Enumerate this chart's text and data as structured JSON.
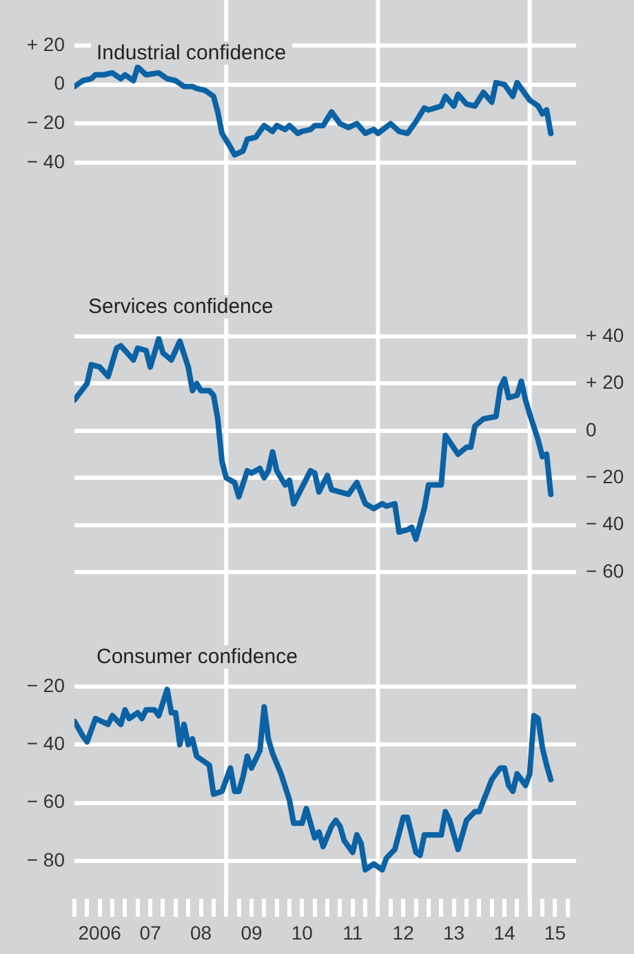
{
  "chart_data": [
    {
      "type": "line",
      "title": "Industrial confidence",
      "xlim": [
        "2006-01",
        "2015-12"
      ],
      "ylim": [
        -40,
        20
      ],
      "yticks": [
        {
          "value": 20,
          "label": "+ 20"
        },
        0,
        {
          "value": -20,
          "label": "− 20"
        },
        {
          "value": -40,
          "label": "− 40"
        }
      ],
      "grid": "y",
      "tick_labels": "y",
      "ref_lines": [
        {
          "axis": "x",
          "value": "2009-01",
          "color": "#ffffff"
        },
        {
          "axis": "x",
          "value": "2012-01",
          "color": "#ffffff"
        },
        {
          "axis": "x",
          "value": "2015-01",
          "color": "#ffffff"
        }
      ],
      "series": [
        {
          "color": "#0b62a4",
          "x": [
            "2006-01",
            "2006-03",
            "2006-05",
            "2006-06",
            "2006-08",
            "2006-10",
            "2006-12",
            "2007-01",
            "2007-03",
            "2007-04",
            "2007-06",
            "2007-09",
            "2007-11",
            "2008-01",
            "2008-03",
            "2008-05",
            "2008-06",
            "2008-08",
            "2008-10",
            "2008-11",
            "2008-12",
            "2009-02",
            "2009-03",
            "2009-05",
            "2009-06",
            "2009-08",
            "2009-10",
            "2009-12",
            "2010-01",
            "2010-03",
            "2010-04",
            "2010-06",
            "2010-07",
            "2010-09",
            "2010-10",
            "2010-12",
            "2011-02",
            "2011-04",
            "2011-06",
            "2011-08",
            "2011-10",
            "2011-12",
            "2012-01",
            "2012-04",
            "2012-06",
            "2012-08",
            "2012-10",
            "2012-12",
            "2013-01",
            "2013-04",
            "2013-05",
            "2013-07",
            "2013-08",
            "2013-10",
            "2013-12",
            "2014-02",
            "2014-04",
            "2014-05",
            "2014-07",
            "2014-09",
            "2014-10",
            "2015-01",
            "2015-03",
            "2015-04",
            "2015-05",
            "2015-06"
          ],
          "values": [
            -1,
            2,
            3,
            5,
            5,
            6,
            3,
            5,
            2,
            9,
            5,
            6,
            3,
            2,
            -1,
            -1,
            -2,
            -3,
            -6,
            -14,
            -25,
            -32,
            -36,
            -34,
            -28,
            -27,
            -21,
            -24,
            -21,
            -23,
            -21,
            -25,
            -24,
            -23,
            -21,
            -21,
            -14,
            -20,
            -22,
            -20,
            -25,
            -23,
            -25,
            -20,
            -24,
            -25,
            -19,
            -12,
            -13,
            -11,
            -6,
            -11,
            -5,
            -10,
            -11,
            -4,
            -9,
            1,
            0,
            -6,
            1,
            -8,
            -11,
            -15,
            -13,
            -25
          ]
        }
      ]
    },
    {
      "type": "line",
      "title": "Services confidence",
      "xlim": [
        "2006-01",
        "2015-12"
      ],
      "y2lim": [
        -60,
        40
      ],
      "y2ticks": [
        {
          "value": 40,
          "label": "+ 40"
        },
        {
          "value": 20,
          "label": "+ 20"
        },
        0,
        {
          "value": -20,
          "label": "− 20"
        },
        {
          "value": -40,
          "label": "− 40"
        },
        {
          "value": -60,
          "label": "− 60"
        }
      ],
      "grid": "y",
      "tick_labels": "y2",
      "ref_lines": [
        {
          "axis": "x",
          "value": "2009-01",
          "color": "#ffffff"
        },
        {
          "axis": "x",
          "value": "2012-01",
          "color": "#ffffff"
        },
        {
          "axis": "x",
          "value": "2015-01",
          "color": "#ffffff"
        }
      ],
      "series": [
        {
          "color": "#0b62a4",
          "axis": "y2",
          "x": [
            "2006-01",
            "2006-04",
            "2006-05",
            "2006-07",
            "2006-09",
            "2006-11",
            "2006-12",
            "2007-03",
            "2007-04",
            "2007-06",
            "2007-07",
            "2007-09",
            "2007-10",
            "2007-12",
            "2008-02",
            "2008-04",
            "2008-05",
            "2008-06",
            "2008-07",
            "2008-09",
            "2008-10",
            "2008-11",
            "2008-12",
            "2009-01",
            "2009-03",
            "2009-04",
            "2009-06",
            "2009-07",
            "2009-09",
            "2009-10",
            "2009-11",
            "2009-12",
            "2010-01",
            "2010-03",
            "2010-04",
            "2010-05",
            "2010-07",
            "2010-09",
            "2010-10",
            "2010-11",
            "2011-01",
            "2011-02",
            "2011-06",
            "2011-08",
            "2011-10",
            "2011-12",
            "2012-02",
            "2012-03",
            "2012-05",
            "2012-06",
            "2012-08",
            "2012-09",
            "2012-10",
            "2012-12",
            "2013-01",
            "2013-04",
            "2013-05",
            "2013-08",
            "2013-10",
            "2013-11",
            "2013-12",
            "2014-02",
            "2014-05",
            "2014-06",
            "2014-07",
            "2014-08",
            "2014-10",
            "2014-11",
            "2014-12",
            "2015-01",
            "2015-03",
            "2015-04",
            "2015-05",
            "2015-06"
          ],
          "values": [
            13,
            20,
            28,
            27,
            23,
            35,
            36,
            30,
            35,
            34,
            27,
            39,
            33,
            30,
            38,
            27,
            17,
            20,
            17,
            17,
            15,
            5,
            -13,
            -20,
            -22,
            -28,
            -17,
            -18,
            -16,
            -20,
            -17,
            -9,
            -17,
            -23,
            -21,
            -31,
            -24,
            -17,
            -18,
            -26,
            -19,
            -25,
            -27,
            -22,
            -31,
            -33,
            -31,
            -32,
            -31,
            -43,
            -42,
            -41,
            -46,
            -33,
            -23,
            -23,
            -2,
            -10,
            -7,
            -7,
            2,
            5,
            6,
            18,
            22,
            14,
            15,
            21,
            13,
            7,
            -4,
            -11,
            -10,
            -27
          ]
        }
      ]
    },
    {
      "type": "line",
      "title": "Consumer confidence",
      "xlim": [
        "2006-01",
        "2015-12"
      ],
      "ylim": [
        -93,
        -20
      ],
      "yticks": [
        {
          "value": -20,
          "label": "− 20"
        },
        {
          "value": -40,
          "label": "− 40"
        },
        {
          "value": -60,
          "label": "− 60"
        },
        {
          "value": -80,
          "label": "− 80"
        }
      ],
      "xticks": [
        {
          "value": "2006-01",
          "label": null
        },
        {
          "value": "2006-04",
          "label": null
        },
        {
          "value": "2006-07",
          "label": "2006"
        },
        {
          "value": "2006-10",
          "label": null
        },
        {
          "value": "2007-01",
          "label": null
        },
        {
          "value": "2007-04",
          "label": null
        },
        {
          "value": "2007-07",
          "label": "07"
        },
        {
          "value": "2007-10",
          "label": null
        },
        {
          "value": "2008-01",
          "label": null
        },
        {
          "value": "2008-04",
          "label": null
        },
        {
          "value": "2008-07",
          "label": "08"
        },
        {
          "value": "2008-10",
          "label": null
        },
        {
          "value": "2009-01",
          "label": null
        },
        {
          "value": "2009-04",
          "label": null
        },
        {
          "value": "2009-07",
          "label": "09"
        },
        {
          "value": "2009-10",
          "label": null
        },
        {
          "value": "2010-01",
          "label": null
        },
        {
          "value": "2010-04",
          "label": null
        },
        {
          "value": "2010-07",
          "label": "10"
        },
        {
          "value": "2010-10",
          "label": null
        },
        {
          "value": "2011-01",
          "label": null
        },
        {
          "value": "2011-04",
          "label": null
        },
        {
          "value": "2011-07",
          "label": "11"
        },
        {
          "value": "2011-10",
          "label": null
        },
        {
          "value": "2012-01",
          "label": null
        },
        {
          "value": "2012-04",
          "label": null
        },
        {
          "value": "2012-07",
          "label": "12"
        },
        {
          "value": "2012-10",
          "label": null
        },
        {
          "value": "2013-01",
          "label": null
        },
        {
          "value": "2013-04",
          "label": null
        },
        {
          "value": "2013-07",
          "label": "13"
        },
        {
          "value": "2013-10",
          "label": null
        },
        {
          "value": "2014-01",
          "label": null
        },
        {
          "value": "2014-04",
          "label": null
        },
        {
          "value": "2014-07",
          "label": "14"
        },
        {
          "value": "2014-10",
          "label": null
        },
        {
          "value": "2015-01",
          "label": null
        },
        {
          "value": "2015-04",
          "label": null
        },
        {
          "value": "2015-07",
          "label": "15"
        },
        {
          "value": "2015-10",
          "label": null
        }
      ],
      "grid": "y",
      "ref_lines": [
        {
          "axis": "x",
          "value": "2009-01",
          "color": "#ffffff"
        },
        {
          "axis": "x",
          "value": "2012-01",
          "color": "#ffffff"
        },
        {
          "axis": "x",
          "value": "2015-01",
          "color": "#ffffff"
        }
      ],
      "series": [
        {
          "color": "#0b62a4",
          "x": [
            "2006-01",
            "2006-03",
            "2006-04",
            "2006-06",
            "2006-09",
            "2006-10",
            "2006-12",
            "2007-01",
            "2007-02",
            "2007-04",
            "2007-05",
            "2007-06",
            "2007-08",
            "2007-09",
            "2007-11",
            "2007-12",
            "2008-01",
            "2008-02",
            "2008-03",
            "2008-04",
            "2008-05",
            "2008-06",
            "2008-08",
            "2008-09",
            "2008-10",
            "2008-12",
            "2009-02",
            "2009-03",
            "2009-04",
            "2009-05",
            "2009-06",
            "2009-07",
            "2009-09",
            "2009-10",
            "2009-11",
            "2009-12",
            "2010-02",
            "2010-04",
            "2010-05",
            "2010-07",
            "2010-08",
            "2010-10",
            "2010-11",
            "2010-12",
            "2011-02",
            "2011-03",
            "2011-04",
            "2011-05",
            "2011-07",
            "2011-08",
            "2011-09",
            "2011-10",
            "2011-12",
            "2012-02",
            "2012-03",
            "2012-05",
            "2012-07",
            "2012-08",
            "2012-10",
            "2012-11",
            "2012-12",
            "2013-03",
            "2013-04",
            "2013-05",
            "2013-06",
            "2013-08",
            "2013-10",
            "2013-12",
            "2014-01",
            "2014-04",
            "2014-06",
            "2014-07",
            "2014-08",
            "2014-09",
            "2014-10",
            "2014-12",
            "2015-01",
            "2015-02",
            "2015-03",
            "2015-04",
            "2015-05",
            "2015-06"
          ],
          "values": [
            -32,
            -37,
            -39,
            -31,
            -33,
            -30,
            -33,
            -28,
            -31,
            -29,
            -31,
            -28,
            -28,
            -30,
            -21,
            -29,
            -29,
            -40,
            -33,
            -40,
            -38,
            -44,
            -46,
            -47,
            -57,
            -56,
            -48,
            -56,
            -56,
            -51,
            -44,
            -48,
            -42,
            -27,
            -38,
            -43,
            -50,
            -59,
            -67,
            -67,
            -62,
            -72,
            -70,
            -75,
            -68,
            -66,
            -68,
            -73,
            -77,
            -71,
            -74,
            -83,
            -81,
            -83,
            -79,
            -76,
            -65,
            -65,
            -77,
            -78,
            -71,
            -71,
            -71,
            -63,
            -66,
            -76,
            -66,
            -63,
            -63,
            -52,
            -48,
            -48,
            -54,
            -56,
            -50,
            -54,
            -50,
            -30,
            -31,
            -41,
            -47,
            -52
          ]
        }
      ]
    }
  ]
}
